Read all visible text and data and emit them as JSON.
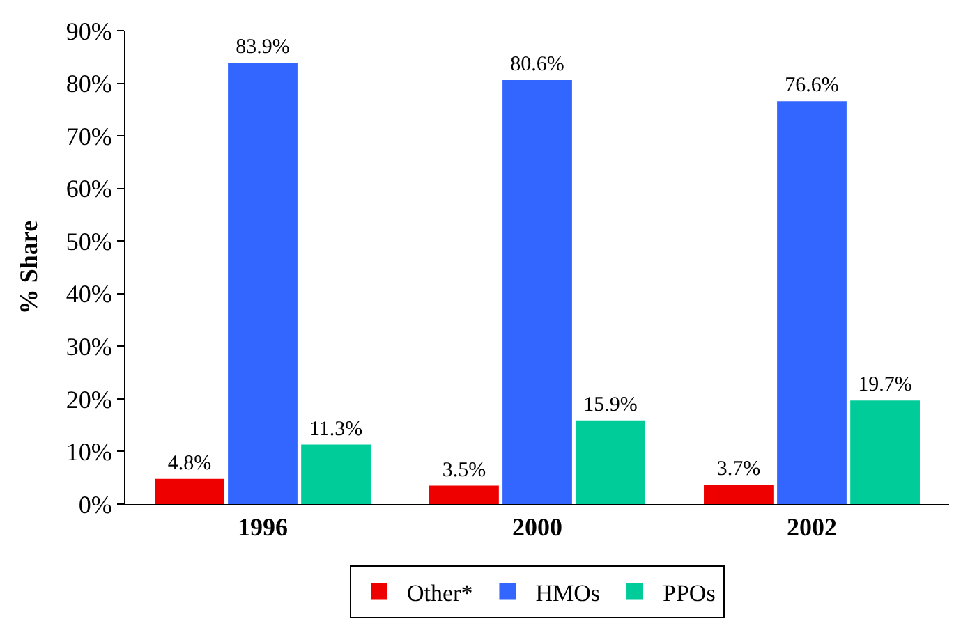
{
  "chart_data": {
    "type": "bar",
    "ylabel": "% Share",
    "categories": [
      "1996",
      "2000",
      "2002"
    ],
    "series": [
      {
        "name": "Other*",
        "color": "#ee0000",
        "values": [
          4.8,
          3.5,
          3.7
        ],
        "value_labels": [
          "4.8%",
          "3.5%",
          "3.7%"
        ]
      },
      {
        "name": "HMOs",
        "color": "#3366ff",
        "values": [
          83.9,
          80.6,
          76.6
        ],
        "value_labels": [
          "83.9%",
          "80.6%",
          "76.6%"
        ]
      },
      {
        "name": "PPOs",
        "color": "#00cc99",
        "values": [
          11.3,
          15.9,
          19.7
        ],
        "value_labels": [
          "11.3%",
          "15.9%",
          "19.7%"
        ]
      }
    ],
    "ylim": [
      0,
      90
    ],
    "yticks": [
      {
        "value": 0,
        "label": "0%"
      },
      {
        "value": 10,
        "label": "10%"
      },
      {
        "value": 20,
        "label": "20%"
      },
      {
        "value": 30,
        "label": "30%"
      },
      {
        "value": 40,
        "label": "40%"
      },
      {
        "value": 50,
        "label": "50%"
      },
      {
        "value": 60,
        "label": "60%"
      },
      {
        "value": 70,
        "label": "70%"
      },
      {
        "value": 80,
        "label": "80%"
      },
      {
        "value": 90,
        "label": "90%"
      }
    ],
    "legend": "bottom"
  }
}
